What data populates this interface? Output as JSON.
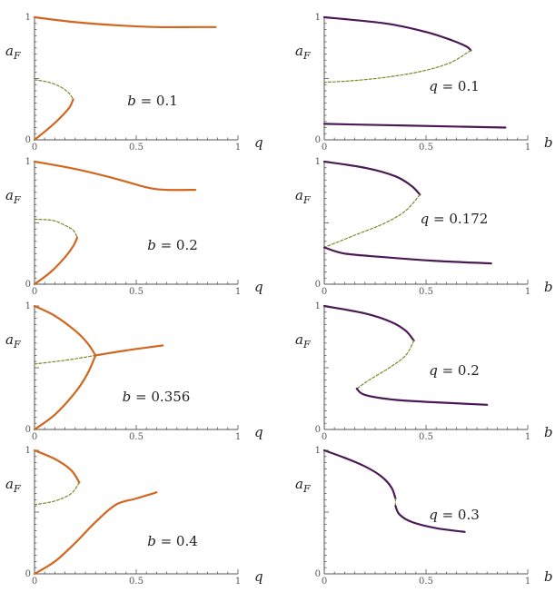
{
  "colors": {
    "orange": "#d1661f",
    "purple": "#4b1a55",
    "dashed": "#7b8a2a",
    "axis": "#555555"
  },
  "chart_data": [
    {
      "type": "line",
      "xlabel": "q",
      "ylabel": "a_F",
      "xlim": [
        0,
        1
      ],
      "ylim": [
        0,
        1
      ],
      "xticks": [
        "0",
        "0.5",
        "1"
      ],
      "yticks": [
        "0",
        "1"
      ],
      "annotation": "b = 0.1",
      "series": [
        {
          "style": "solid",
          "color": "orange",
          "points": [
            [
              0,
              1.0
            ],
            [
              0.2,
              0.96
            ],
            [
              0.4,
              0.935
            ],
            [
              0.6,
              0.92
            ],
            [
              0.8,
              0.92
            ],
            [
              0.89,
              0.92
            ]
          ]
        },
        {
          "style": "dashed",
          "color": "orange",
          "points": [
            [
              0,
              0.49
            ],
            [
              0.07,
              0.47
            ],
            [
              0.13,
              0.43
            ],
            [
              0.17,
              0.38
            ],
            [
              0.19,
              0.33
            ]
          ]
        },
        {
          "style": "solid",
          "color": "orange",
          "points": [
            [
              0,
              0.0
            ],
            [
              0.06,
              0.08
            ],
            [
              0.12,
              0.17
            ],
            [
              0.17,
              0.26
            ],
            [
              0.19,
              0.33
            ]
          ]
        }
      ]
    },
    {
      "type": "line",
      "xlabel": "b",
      "ylabel": "a_F",
      "xlim": [
        0,
        1
      ],
      "ylim": [
        0,
        1
      ],
      "xticks": [
        "0",
        "0.5",
        "1"
      ],
      "yticks": [
        "0",
        "1"
      ],
      "annotation": "q = 0.1",
      "series": [
        {
          "style": "solid",
          "color": "purple",
          "points": [
            [
              0,
              1.0
            ],
            [
              0.3,
              0.95
            ],
            [
              0.5,
              0.88
            ],
            [
              0.63,
              0.81
            ],
            [
              0.7,
              0.76
            ],
            [
              0.72,
              0.73
            ]
          ]
        },
        {
          "style": "dashed",
          "color": "purple",
          "points": [
            [
              0.72,
              0.73
            ],
            [
              0.62,
              0.63
            ],
            [
              0.48,
              0.56
            ],
            [
              0.3,
              0.51
            ],
            [
              0.12,
              0.48
            ],
            [
              0,
              0.47
            ]
          ]
        },
        {
          "style": "solid",
          "color": "purple",
          "points": [
            [
              0,
              0.13
            ],
            [
              0.3,
              0.12
            ],
            [
              0.6,
              0.11
            ],
            [
              0.89,
              0.1
            ]
          ]
        }
      ]
    },
    {
      "type": "line",
      "xlabel": "q",
      "ylabel": "a_F",
      "xlim": [
        0,
        1
      ],
      "ylim": [
        0,
        1
      ],
      "xticks": [
        "0",
        "0.5",
        "1"
      ],
      "yticks": [
        "0",
        "1"
      ],
      "annotation": "b = 0.2",
      "series": [
        {
          "style": "solid",
          "color": "orange",
          "points": [
            [
              0,
              1.0
            ],
            [
              0.2,
              0.94
            ],
            [
              0.4,
              0.86
            ],
            [
              0.55,
              0.79
            ],
            [
              0.65,
              0.77
            ],
            [
              0.79,
              0.77
            ]
          ]
        },
        {
          "style": "dashed",
          "color": "orange",
          "points": [
            [
              0,
              0.53
            ],
            [
              0.09,
              0.52
            ],
            [
              0.15,
              0.48
            ],
            [
              0.19,
              0.44
            ],
            [
              0.21,
              0.38
            ]
          ]
        },
        {
          "style": "solid",
          "color": "orange",
          "points": [
            [
              0,
              0.0
            ],
            [
              0.08,
              0.1
            ],
            [
              0.15,
              0.22
            ],
            [
              0.19,
              0.31
            ],
            [
              0.21,
              0.38
            ]
          ]
        }
      ]
    },
    {
      "type": "line",
      "xlabel": "b",
      "ylabel": "a_F",
      "xlim": [
        0,
        1
      ],
      "ylim": [
        0,
        1
      ],
      "xticks": [
        "0",
        "0.5",
        "1"
      ],
      "yticks": [
        "0",
        "1"
      ],
      "annotation": "q = 0.172",
      "series": [
        {
          "style": "solid",
          "color": "purple",
          "points": [
            [
              0,
              1.0
            ],
            [
              0.2,
              0.95
            ],
            [
              0.35,
              0.88
            ],
            [
              0.43,
              0.8
            ],
            [
              0.47,
              0.73
            ]
          ]
        },
        {
          "style": "dashed",
          "color": "purple",
          "points": [
            [
              0.47,
              0.73
            ],
            [
              0.4,
              0.6
            ],
            [
              0.3,
              0.5
            ],
            [
              0.15,
              0.4
            ],
            [
              0.03,
              0.32
            ],
            [
              0,
              0.3
            ]
          ]
        },
        {
          "style": "solid",
          "color": "purple",
          "points": [
            [
              0,
              0.3
            ],
            [
              0.1,
              0.25
            ],
            [
              0.3,
              0.22
            ],
            [
              0.55,
              0.19
            ],
            [
              0.82,
              0.17
            ]
          ]
        }
      ]
    },
    {
      "type": "line",
      "xlabel": "q",
      "ylabel": "a_F",
      "xlim": [
        0,
        1
      ],
      "ylim": [
        0,
        1
      ],
      "xticks": [
        "0",
        "0.5",
        "1"
      ],
      "yticks": [
        "0",
        "1"
      ],
      "annotation": "b = 0.356",
      "series": [
        {
          "style": "solid",
          "color": "orange",
          "points": [
            [
              0,
              1.0
            ],
            [
              0.1,
              0.92
            ],
            [
              0.2,
              0.8
            ],
            [
              0.26,
              0.7
            ],
            [
              0.3,
              0.6
            ]
          ]
        },
        {
          "style": "solid",
          "color": "orange",
          "points": [
            [
              0,
              0.0
            ],
            [
              0.1,
              0.12
            ],
            [
              0.2,
              0.3
            ],
            [
              0.26,
              0.45
            ],
            [
              0.3,
              0.6
            ]
          ]
        },
        {
          "style": "dashed",
          "color": "orange",
          "points": [
            [
              0,
              0.53
            ],
            [
              0.15,
              0.56
            ],
            [
              0.3,
              0.6
            ]
          ]
        },
        {
          "style": "solid",
          "color": "orange",
          "points": [
            [
              0.3,
              0.6
            ],
            [
              0.45,
              0.64
            ],
            [
              0.63,
              0.68
            ]
          ]
        }
      ]
    },
    {
      "type": "line",
      "xlabel": "b",
      "ylabel": "a_F",
      "xlim": [
        0,
        1
      ],
      "ylim": [
        0,
        1
      ],
      "xticks": [
        "0",
        "0.5",
        "1"
      ],
      "yticks": [
        "0",
        "1"
      ],
      "annotation": "q = 0.2",
      "series": [
        {
          "style": "solid",
          "color": "purple",
          "points": [
            [
              0,
              1.0
            ],
            [
              0.2,
              0.94
            ],
            [
              0.33,
              0.87
            ],
            [
              0.4,
              0.8
            ],
            [
              0.44,
              0.72
            ]
          ]
        },
        {
          "style": "dashed",
          "color": "purple",
          "points": [
            [
              0.44,
              0.72
            ],
            [
              0.4,
              0.6
            ],
            [
              0.32,
              0.5
            ],
            [
              0.22,
              0.4
            ],
            [
              0.16,
              0.33
            ]
          ]
        },
        {
          "style": "solid",
          "color": "purple",
          "points": [
            [
              0.16,
              0.33
            ],
            [
              0.2,
              0.28
            ],
            [
              0.35,
              0.24
            ],
            [
              0.55,
              0.22
            ],
            [
              0.8,
              0.2
            ]
          ]
        }
      ]
    },
    {
      "type": "line",
      "xlabel": "q",
      "ylabel": "a_F",
      "xlim": [
        0,
        1
      ],
      "ylim": [
        0,
        1
      ],
      "xticks": [
        "0",
        "0.5",
        "1"
      ],
      "yticks": [
        "0",
        "1"
      ],
      "annotation": "b = 0.4",
      "series": [
        {
          "style": "solid",
          "color": "orange",
          "points": [
            [
              0,
              1.0
            ],
            [
              0.1,
              0.93
            ],
            [
              0.18,
              0.84
            ],
            [
              0.22,
              0.74
            ]
          ]
        },
        {
          "style": "dashed",
          "color": "orange",
          "points": [
            [
              0.22,
              0.74
            ],
            [
              0.18,
              0.65
            ],
            [
              0.1,
              0.59
            ],
            [
              0,
              0.56
            ]
          ]
        },
        {
          "style": "solid",
          "color": "orange",
          "points": [
            [
              0,
              0.0
            ],
            [
              0.1,
              0.1
            ],
            [
              0.2,
              0.25
            ],
            [
              0.3,
              0.42
            ],
            [
              0.4,
              0.56
            ],
            [
              0.5,
              0.61
            ],
            [
              0.6,
              0.66
            ]
          ]
        }
      ]
    },
    {
      "type": "line",
      "xlabel": "b",
      "ylabel": "a_F",
      "xlim": [
        0,
        1
      ],
      "ylim": [
        0,
        1
      ],
      "xticks": [
        "0",
        "0.5",
        "1"
      ],
      "yticks": [
        "0",
        "1"
      ],
      "annotation": "q = 0.3",
      "series": [
        {
          "style": "solid",
          "color": "purple",
          "points": [
            [
              0,
              1.0
            ],
            [
              0.1,
              0.94
            ],
            [
              0.2,
              0.87
            ],
            [
              0.28,
              0.79
            ],
            [
              0.33,
              0.7
            ],
            [
              0.35,
              0.61
            ]
          ]
        },
        {
          "style": "dashed",
          "color": "purple",
          "points": [
            [
              0.35,
              0.61
            ],
            [
              0.35,
              0.55
            ]
          ]
        },
        {
          "style": "solid",
          "color": "purple",
          "points": [
            [
              0.35,
              0.55
            ],
            [
              0.37,
              0.48
            ],
            [
              0.43,
              0.42
            ],
            [
              0.55,
              0.37
            ],
            [
              0.69,
              0.34
            ]
          ]
        }
      ]
    }
  ]
}
